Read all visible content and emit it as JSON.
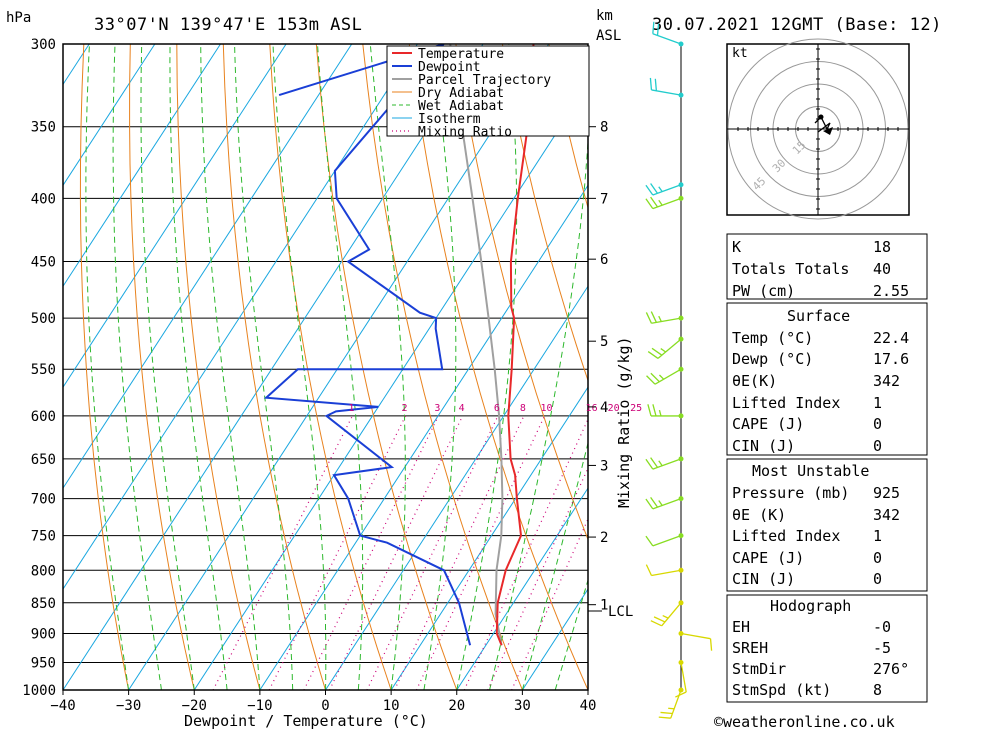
{
  "header": {
    "location": "33°07'N 139°47'E 153m ASL",
    "datetime": "30.07.2021 12GMT (Base: 12)",
    "pressure_unit": "hPa",
    "km_unit": "km",
    "asl_label": "ASL"
  },
  "colors": {
    "temperature": "#e8282a",
    "dewpoint": "#1a3fd6",
    "parcel": "#a0a0a0",
    "dry_adiabat": "#e8821e",
    "wet_adiabat": "#2db82d",
    "isotherm": "#1aa7e0",
    "mixing_ratio": "#cc0077",
    "wind_low": "#d8d800",
    "wind_mid": "#88dd22",
    "wind_high": "#22cccc"
  },
  "legend": [
    "Temperature",
    "Dewpoint",
    "Parcel Trajectory",
    "Dry Adiabat",
    "Wet Adiabat",
    "Isotherm",
    "Mixing Ratio"
  ],
  "axes": {
    "xlabel": "Dewpoint / Temperature (°C)",
    "mixing_ratio_label": "Mixing Ratio (g/kg)",
    "lcl_label": "LCL"
  },
  "hodograph": {
    "unit": "kt",
    "rings": [
      "15",
      "30",
      "45"
    ]
  },
  "indices": [
    {
      "label": "K",
      "value": "18"
    },
    {
      "label": "Totals Totals",
      "value": "40"
    },
    {
      "label": "PW (cm)",
      "value": "2.55"
    }
  ],
  "surface": {
    "title": "Surface",
    "rows": [
      {
        "label": "Temp (°C)",
        "value": "22.4"
      },
      {
        "label": "Dewp (°C)",
        "value": "17.6"
      },
      {
        "label": "θE(K)",
        "value": "342"
      },
      {
        "label": "Lifted Index",
        "value": "1"
      },
      {
        "label": "CAPE (J)",
        "value": "0"
      },
      {
        "label": "CIN (J)",
        "value": "0"
      }
    ]
  },
  "most_unstable": {
    "title": "Most Unstable",
    "rows": [
      {
        "label": "Pressure (mb)",
        "value": "925"
      },
      {
        "label": "θE (K)",
        "value": "342"
      },
      {
        "label": "Lifted Index",
        "value": "1"
      },
      {
        "label": "CAPE (J)",
        "value": "0"
      },
      {
        "label": "CIN (J)",
        "value": "0"
      }
    ]
  },
  "hodograph_table": {
    "title": "Hodograph",
    "rows": [
      {
        "label": "EH",
        "value": "-0"
      },
      {
        "label": "SREH",
        "value": "-5"
      },
      {
        "label": "StmDir",
        "value": "276°"
      },
      {
        "label": "StmSpd (kt)",
        "value": "8"
      }
    ]
  },
  "credit": "©weatheronline.co.uk",
  "chart_data": {
    "type": "skew-t",
    "temp_range": [
      -40,
      40
    ],
    "pressure_range": [
      1000,
      300
    ],
    "temp_ticks": [
      -40,
      -30,
      -20,
      -10,
      0,
      10,
      20,
      30,
      40
    ],
    "pressure_ticks": [
      300,
      350,
      400,
      450,
      500,
      550,
      600,
      650,
      700,
      750,
      800,
      850,
      900,
      950,
      1000
    ],
    "km_ticks": [
      {
        "p": 853,
        "label": "1"
      },
      {
        "p": 752,
        "label": "2"
      },
      {
        "p": 658,
        "label": "3"
      },
      {
        "p": 590,
        "label": "4"
      },
      {
        "p": 522,
        "label": "5"
      },
      {
        "p": 448,
        "label": "6"
      },
      {
        "p": 400,
        "label": "7"
      },
      {
        "p": 350,
        "label": "8"
      }
    ],
    "lcl_pressure": 868,
    "mixing_ratios": [
      "1",
      "2",
      "3",
      "4",
      "6",
      "8",
      "10",
      "16",
      "20",
      "25"
    ],
    "temperature": [
      [
        920,
        22.4
      ],
      [
        900,
        20.5
      ],
      [
        850,
        17.6
      ],
      [
        800,
        15.6
      ],
      [
        750,
        14.5
      ],
      [
        700,
        10.2
      ],
      [
        670,
        7.6
      ],
      [
        650,
        5.3
      ],
      [
        600,
        0.7
      ],
      [
        550,
        -3.4
      ],
      [
        500,
        -8.1
      ],
      [
        490,
        -9.6
      ],
      [
        450,
        -14.2
      ],
      [
        400,
        -19.4
      ],
      [
        350,
        -25.0
      ],
      [
        300,
        -32.3
      ]
    ],
    "dewpoint": [
      [
        920,
        17.6
      ],
      [
        850,
        11.7
      ],
      [
        800,
        6.2
      ],
      [
        760,
        -5.2
      ],
      [
        750,
        -10.0
      ],
      [
        700,
        -15.5
      ],
      [
        670,
        -20.0
      ],
      [
        660,
        -12.0
      ],
      [
        600,
        -27.0
      ],
      [
        595,
        -26.0
      ],
      [
        590,
        -20.0
      ],
      [
        580,
        -38.0
      ],
      [
        550,
        -36.0
      ],
      [
        550,
        -14.0
      ],
      [
        510,
        -19.0
      ],
      [
        500,
        -20.0
      ],
      [
        495,
        -23.0
      ],
      [
        450,
        -39.0
      ],
      [
        440,
        -37.0
      ],
      [
        400,
        -47.0
      ],
      [
        380,
        -50.0
      ],
      [
        300,
        -46.0
      ],
      [
        330,
        -66.0
      ]
    ],
    "parcel": [
      [
        920,
        22.4
      ],
      [
        868,
        18.4
      ],
      [
        800,
        14.2
      ],
      [
        750,
        11.5
      ],
      [
        700,
        8.0
      ],
      [
        650,
        3.9
      ],
      [
        600,
        -0.7
      ],
      [
        550,
        -6.0
      ],
      [
        500,
        -12.0
      ],
      [
        450,
        -18.7
      ],
      [
        400,
        -26.3
      ],
      [
        350,
        -35.0
      ],
      [
        300,
        -45.0
      ]
    ],
    "winds": [
      {
        "p": 1000,
        "dir": 200,
        "spd": 15
      },
      {
        "p": 950,
        "dir": 170,
        "spd": 10
      },
      {
        "p": 900,
        "dir": 100,
        "spd": 10
      },
      {
        "p": 850,
        "dir": 220,
        "spd": 15
      },
      {
        "p": 800,
        "dir": 260,
        "spd": 10
      },
      {
        "p": 750,
        "dir": 250,
        "spd": 10
      },
      {
        "p": 700,
        "dir": 250,
        "spd": 15
      },
      {
        "p": 650,
        "dir": 250,
        "spd": 15
      },
      {
        "p": 600,
        "dir": 270,
        "spd": 15
      },
      {
        "p": 550,
        "dir": 240,
        "spd": 15
      },
      {
        "p": 520,
        "dir": 230,
        "spd": 15
      },
      {
        "p": 500,
        "dir": 260,
        "spd": 15
      },
      {
        "p": 400,
        "dir": 250,
        "spd": 15
      },
      {
        "p": 390,
        "dir": 250,
        "spd": 15
      },
      {
        "p": 330,
        "dir": 280,
        "spd": 20
      },
      {
        "p": 300,
        "dir": 290,
        "spd": 20
      }
    ],
    "hodograph_points": [
      [
        -1,
        2
      ],
      [
        1,
        4
      ],
      [
        3,
        0
      ],
      [
        4,
        2
      ],
      [
        0,
        -1
      ]
    ]
  }
}
